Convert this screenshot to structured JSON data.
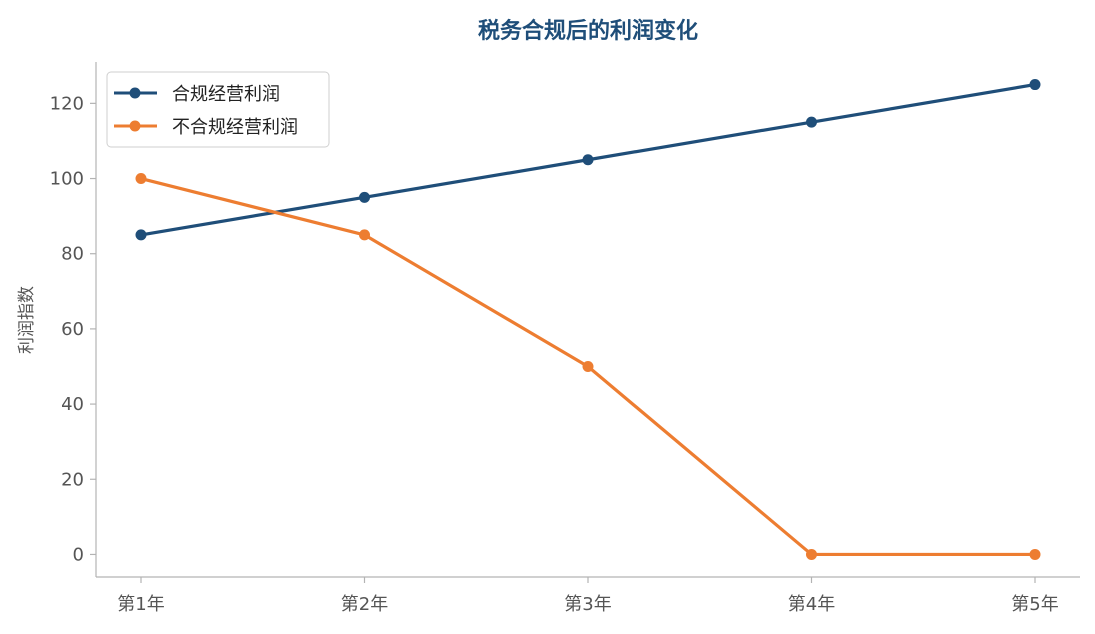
{
  "chart_data": {
    "type": "line",
    "title": "税务合规后的利润变化",
    "xlabel": "",
    "ylabel": "利润指数",
    "categories": [
      "第1年",
      "第2年",
      "第3年",
      "第4年",
      "第5年"
    ],
    "series": [
      {
        "name": "合规经营利润",
        "values": [
          85,
          95,
          105,
          115,
          125
        ],
        "color": "#1f4e79"
      },
      {
        "name": "不合规经营利润",
        "values": [
          100,
          85,
          50,
          0,
          0
        ],
        "color": "#ed7d31"
      }
    ],
    "ylim": [
      -6,
      131
    ],
    "yticks": [
      0,
      20,
      40,
      60,
      80,
      100,
      120
    ],
    "grid": false,
    "legend_position": "top-left"
  }
}
